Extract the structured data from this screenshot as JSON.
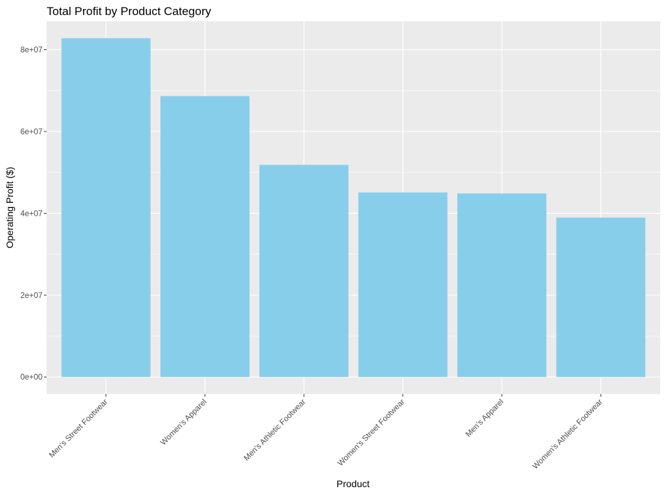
{
  "chart_data": {
    "type": "bar",
    "title": "Total Profit by Product Category",
    "xlabel": "Product",
    "ylabel": "Operating Profit ($)",
    "categories": [
      "Men's Street Footwear",
      "Women's Apparel",
      "Men's Athletic Footwear",
      "Women's Street Footwear",
      "Men's Apparel",
      "Women's Athletic Footwear"
    ],
    "values": [
      82800000,
      68650000,
      51850000,
      45100000,
      44850000,
      38950000
    ],
    "ylim": [
      -4150000,
      86950000
    ],
    "yticks": [
      0,
      20000000,
      40000000,
      60000000,
      80000000
    ],
    "ytick_labels": [
      "0e+00",
      "2e+07",
      "4e+07",
      "6e+07",
      "8e+07"
    ],
    "bar_color": "#87CEEB",
    "panel_color": "#EBEBEB",
    "grid_color": "#FFFFFF",
    "grid": true,
    "legend": "none"
  }
}
